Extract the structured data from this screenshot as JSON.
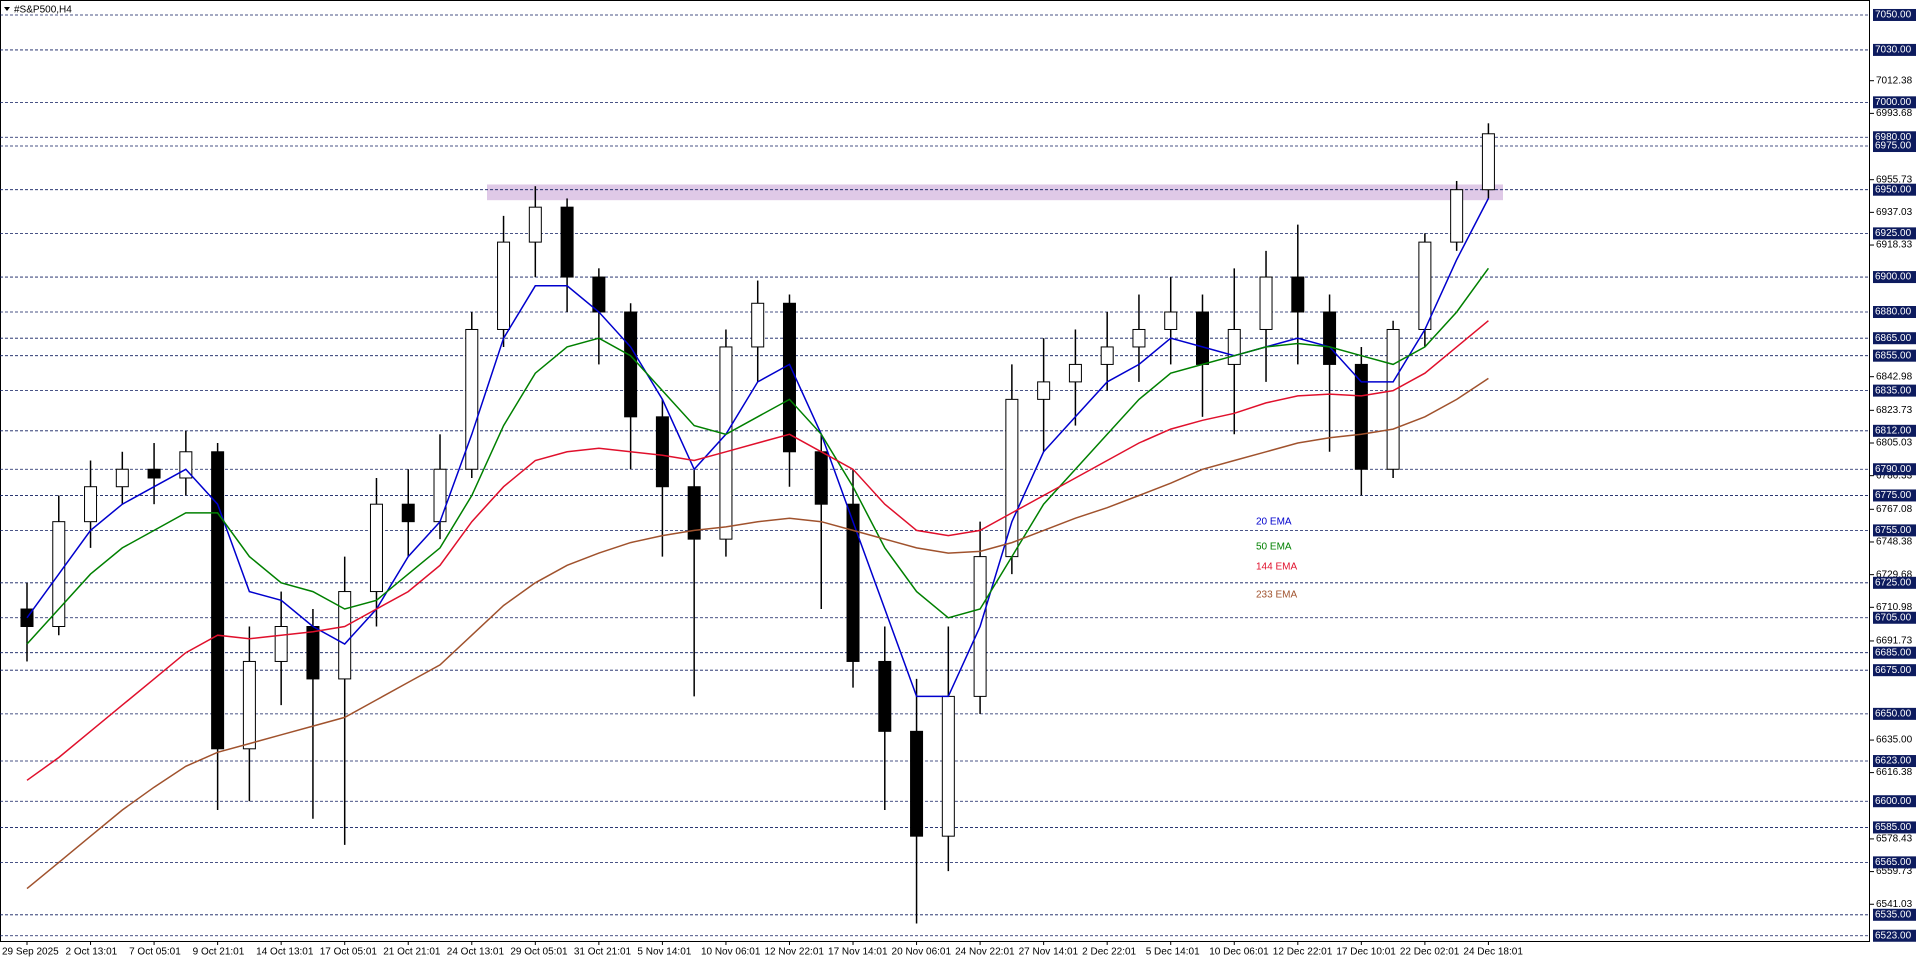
{
  "chart_data": {
    "type": "candlestick",
    "title": "#S&P500,H4",
    "categories": [
      "29 Sep 2025",
      null,
      "2 Oct 13:01",
      null,
      "7 Oct 05:01",
      null,
      "9 Oct 21:01",
      null,
      "14 Oct 13:01",
      null,
      "17 Oct 05:01",
      null,
      "21 Oct 21:01",
      null,
      "24 Oct 13:01",
      null,
      "29 Oct 05:01",
      null,
      "31 Oct 21:01",
      null,
      "5 Nov 14:01",
      null,
      "10 Nov 06:01",
      null,
      "12 Nov 22:01",
      null,
      "17 Nov 14:01",
      null,
      "20 Nov 06:01",
      null,
      "24 Nov 22:01",
      null,
      "27 Nov 14:01",
      null,
      "2 Dec 22:01",
      null,
      "5 Dec 14:01",
      null,
      "10 Dec 06:01",
      null,
      "12 Dec 22:01",
      null,
      "17 Dec 10:01",
      null,
      "22 Dec 02:01",
      null,
      "24 Dec 18:01"
    ],
    "open": [
      6710,
      6700,
      6760,
      6780,
      6790,
      6785,
      6800,
      6630,
      6680,
      6700,
      6670,
      6720,
      6770,
      6760,
      6790,
      6870,
      6920,
      6940,
      6900,
      6880,
      6820,
      6780,
      6750,
      6860,
      6885,
      6800,
      6770,
      6680,
      6640,
      6580,
      6660,
      6740,
      6830,
      6840,
      6850,
      6860,
      6870,
      6880,
      6850,
      6870,
      6900,
      6880,
      6850,
      6790,
      6870,
      6920,
      6950
    ],
    "high": [
      6725,
      6775,
      6795,
      6800,
      6805,
      6812,
      6805,
      6700,
      6720,
      6710,
      6740,
      6785,
      6790,
      6810,
      6880,
      6935,
      6952,
      6945,
      6905,
      6885,
      6830,
      6790,
      6870,
      6898,
      6890,
      6810,
      6790,
      6700,
      6670,
      6700,
      6760,
      6850,
      6865,
      6870,
      6880,
      6890,
      6900,
      6890,
      6905,
      6915,
      6930,
      6890,
      6860,
      6875,
      6925,
      6955,
      6988
    ],
    "low": [
      6680,
      6695,
      6745,
      6770,
      6770,
      6775,
      6595,
      6600,
      6655,
      6590,
      6575,
      6700,
      6740,
      6750,
      6785,
      6860,
      6900,
      6880,
      6850,
      6790,
      6740,
      6660,
      6740,
      6840,
      6780,
      6710,
      6665,
      6595,
      6530,
      6560,
      6650,
      6730,
      6800,
      6815,
      6835,
      6840,
      6850,
      6820,
      6810,
      6840,
      6850,
      6800,
      6775,
      6785,
      6860,
      6915,
      6945
    ],
    "close": [
      6700,
      6760,
      6780,
      6790,
      6785,
      6800,
      6630,
      6680,
      6700,
      6670,
      6720,
      6770,
      6760,
      6790,
      6870,
      6920,
      6940,
      6900,
      6880,
      6820,
      6780,
      6750,
      6860,
      6885,
      6800,
      6770,
      6680,
      6640,
      6580,
      6660,
      6740,
      6830,
      6840,
      6850,
      6860,
      6870,
      6880,
      6850,
      6870,
      6900,
      6880,
      6850,
      6790,
      6870,
      6920,
      6950,
      6982
    ],
    "series": [
      {
        "name": "20 EMA",
        "color": "#0000cd",
        "values": [
          6705,
          6730,
          6755,
          6770,
          6780,
          6790,
          6770,
          6720,
          6715,
          6700,
          6690,
          6710,
          6740,
          6760,
          6810,
          6865,
          6895,
          6895,
          6880,
          6860,
          6830,
          6790,
          6810,
          6840,
          6850,
          6810,
          6760,
          6710,
          6660,
          6660,
          6700,
          6760,
          6800,
          6820,
          6840,
          6850,
          6865,
          6860,
          6855,
          6860,
          6865,
          6860,
          6840,
          6840,
          6870,
          6910,
          6945
        ]
      },
      {
        "name": "50 EMA",
        "color": "#008000",
        "values": [
          6690,
          6710,
          6730,
          6745,
          6755,
          6765,
          6765,
          6740,
          6725,
          6720,
          6710,
          6715,
          6730,
          6745,
          6775,
          6815,
          6845,
          6860,
          6865,
          6855,
          6835,
          6815,
          6810,
          6820,
          6830,
          6810,
          6780,
          6745,
          6720,
          6705,
          6710,
          6740,
          6770,
          6790,
          6810,
          6830,
          6845,
          6850,
          6855,
          6860,
          6862,
          6860,
          6855,
          6850,
          6860,
          6880,
          6905
        ]
      },
      {
        "name": "144 EMA",
        "color": "#e0102c",
        "values": [
          6612,
          6625,
          6640,
          6655,
          6670,
          6685,
          6695,
          6693,
          6695,
          6697,
          6700,
          6710,
          6720,
          6735,
          6760,
          6780,
          6795,
          6800,
          6802,
          6800,
          6798,
          6795,
          6800,
          6805,
          6810,
          6800,
          6790,
          6770,
          6755,
          6752,
          6755,
          6765,
          6775,
          6785,
          6795,
          6805,
          6813,
          6818,
          6822,
          6828,
          6832,
          6833,
          6832,
          6835,
          6845,
          6860,
          6875
        ]
      },
      {
        "name": "233 EMA",
        "color": "#a0522d",
        "values": [
          6550,
          6565,
          6580,
          6595,
          6608,
          6620,
          6628,
          6633,
          6638,
          6643,
          6648,
          6658,
          6668,
          6678,
          6695,
          6712,
          6725,
          6735,
          6742,
          6748,
          6752,
          6755,
          6757,
          6760,
          6762,
          6760,
          6755,
          6750,
          6745,
          6742,
          6743,
          6748,
          6755,
          6762,
          6768,
          6775,
          6782,
          6790,
          6795,
          6800,
          6805,
          6808,
          6810,
          6813,
          6820,
          6830,
          6842
        ]
      }
    ],
    "ylim": [
      6520,
      7058
    ],
    "yticks": [
      {
        "value": 7012.38,
        "label": "7012.38"
      },
      {
        "value": 6993.68,
        "label": "6993.68"
      },
      {
        "value": 6955.73,
        "label": "6955.73"
      },
      {
        "value": 6937.03,
        "label": "6937.03"
      },
      {
        "value": 6918.33,
        "label": "6918.33"
      },
      {
        "value": 6842.98,
        "label": "6842.98"
      },
      {
        "value": 6823.73,
        "label": "6823.73"
      },
      {
        "value": 6805.03,
        "label": "6805.03"
      },
      {
        "value": 6786.33,
        "label": "6786.33"
      },
      {
        "value": 6767.08,
        "label": "6767.08"
      },
      {
        "value": 6748.38,
        "label": "6748.38"
      },
      {
        "value": 6729.68,
        "label": "6729.68"
      },
      {
        "value": 6710.98,
        "label": "6710.98"
      },
      {
        "value": 6691.73,
        "label": "6691.73"
      },
      {
        "value": 6635,
        "label": "6635.00"
      },
      {
        "value": 6616.38,
        "label": "6616.38"
      },
      {
        "value": 6578.43,
        "label": "6578.43"
      },
      {
        "value": 6559.73,
        "label": "6559.73"
      },
      {
        "value": 6541.03,
        "label": "6541.03"
      }
    ],
    "levels": [
      {
        "value": 7050,
        "label": "7050.00"
      },
      {
        "value": 7030,
        "label": "7030.00"
      },
      {
        "value": 7000,
        "label": "7000.00"
      },
      {
        "value": 6980,
        "label": "6980.00"
      },
      {
        "value": 6975,
        "label": "6975.00"
      },
      {
        "value": 6950,
        "label": "6950.00"
      },
      {
        "value": 6925,
        "label": "6925.00"
      },
      {
        "value": 6900,
        "label": "6900.00"
      },
      {
        "value": 6880,
        "label": "6880.00"
      },
      {
        "value": 6865,
        "label": "6865.00"
      },
      {
        "value": 6855,
        "label": "6855.00"
      },
      {
        "value": 6835,
        "label": "6835.00"
      },
      {
        "value": 6812,
        "label": "6812.00"
      },
      {
        "value": 6790,
        "label": "6790.00"
      },
      {
        "value": 6775,
        "label": "6775.00"
      },
      {
        "value": 6755,
        "label": "6755.00"
      },
      {
        "value": 6725,
        "label": "6725.00"
      },
      {
        "value": 6705,
        "label": "6705.00"
      },
      {
        "value": 6685,
        "label": "6685.00"
      },
      {
        "value": 6675,
        "label": "6675.00"
      },
      {
        "value": 6650,
        "label": "6650.00"
      },
      {
        "value": 6623,
        "label": "6623.00"
      },
      {
        "value": 6600,
        "label": "6600.00"
      },
      {
        "value": 6585,
        "label": "6585.00"
      },
      {
        "value": 6565,
        "label": "6565.00"
      },
      {
        "value": 6535,
        "label": "6535.00"
      },
      {
        "value": 6523,
        "label": "6523.00"
      }
    ],
    "zone": [
      6944,
      6953
    ],
    "zone_color": "#d9bfe3",
    "up_color": "#ffffff",
    "down_color": "#000000",
    "level_color": "#0d1b5e",
    "grid": true
  }
}
